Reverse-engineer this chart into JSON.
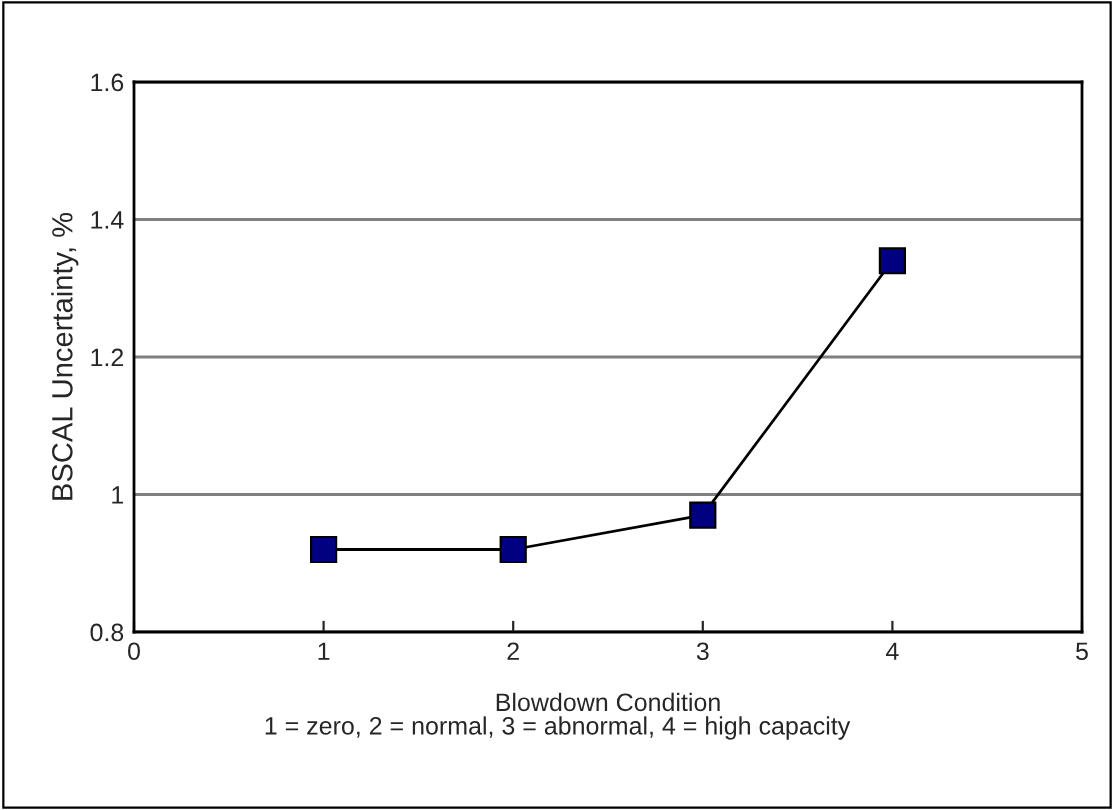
{
  "chart_data": {
    "type": "line",
    "xlabel": "Blowdown Condition",
    "ylabel": "BSCAL Uncertainty, %",
    "annotations": [
      "1 = zero, 2 = normal, 3 = abnormal, 4 = high capacity"
    ],
    "x": [
      1,
      2,
      3,
      4
    ],
    "series": [
      {
        "color": "#000080",
        "values": [
          0.92,
          0.92,
          0.97,
          1.34
        ]
      }
    ],
    "xlim": [
      0,
      5
    ],
    "xticks": [
      0,
      1,
      2,
      3,
      4,
      5
    ],
    "ylim": [
      0.8,
      1.6
    ],
    "yticks": [
      0.8,
      1,
      1.2,
      1.4,
      1.6
    ],
    "grid": "y",
    "marker": "square",
    "line_style": "solid",
    "legend": false
  }
}
